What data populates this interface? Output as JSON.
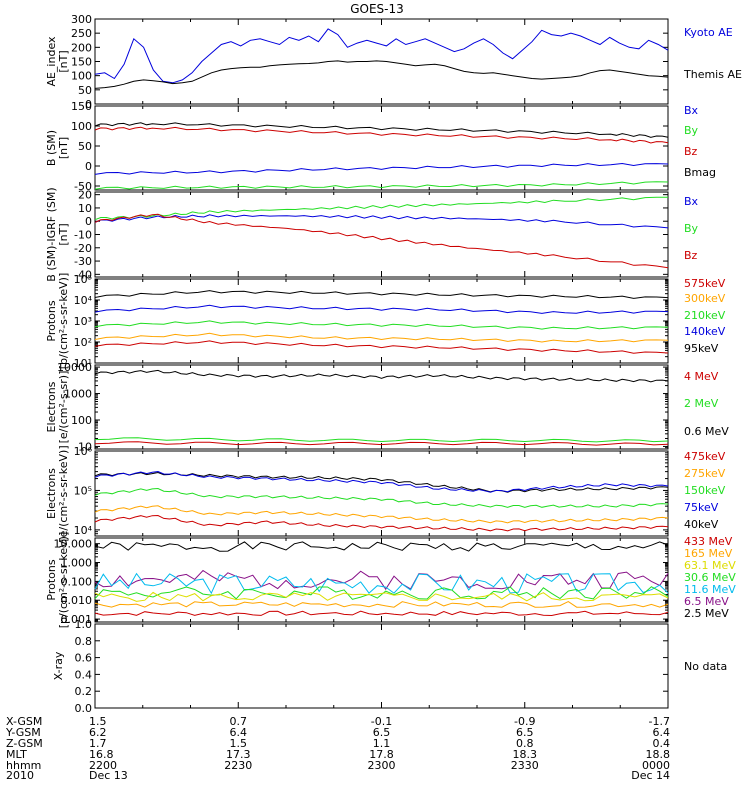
{
  "title": "GOES-13",
  "empty_panel_text": "No data",
  "colors": {
    "black": "#000000",
    "blue": "#0000dd",
    "green": "#22dd22",
    "red": "#cc0000",
    "orange": "#ffa500",
    "yellow": "#dddd00",
    "cyan": "#00bbee",
    "purple": "#881188"
  },
  "chart_data": [
    {
      "type": "line",
      "panel": "ae",
      "ylabel": [
        "AE_index",
        "[nT]"
      ],
      "ylim": [
        0,
        300
      ],
      "scale": "linear",
      "yticks": [
        0,
        50,
        100,
        150,
        200,
        250,
        300
      ],
      "ytick_labels": [
        "0",
        "50",
        "100",
        "150",
        "200",
        "250",
        "300"
      ],
      "legend": [
        {
          "label": "Kyoto AE",
          "color": "#0000dd"
        },
        {
          "label": "Themis AE",
          "color": "#000000"
        }
      ],
      "series": [
        {
          "name": "Kyoto AE",
          "color": "#0000dd",
          "values": [
            105,
            110,
            90,
            140,
            230,
            200,
            120,
            80,
            75,
            85,
            110,
            150,
            180,
            210,
            220,
            205,
            225,
            230,
            220,
            210,
            235,
            225,
            240,
            220,
            265,
            245,
            200,
            215,
            225,
            215,
            205,
            230,
            210,
            220,
            230,
            215,
            200,
            185,
            195,
            215,
            230,
            210,
            180,
            160,
            190,
            220,
            260,
            245,
            240,
            250,
            240,
            225,
            210,
            235,
            215,
            200,
            195,
            225,
            210,
            190
          ]
        },
        {
          "name": "Themis AE",
          "color": "#000000",
          "values": [
            55,
            58,
            62,
            70,
            80,
            85,
            82,
            78,
            72,
            75,
            80,
            95,
            110,
            120,
            125,
            128,
            130,
            130,
            135,
            138,
            140,
            142,
            143,
            145,
            150,
            152,
            148,
            150,
            150,
            152,
            150,
            145,
            140,
            135,
            138,
            140,
            135,
            125,
            115,
            110,
            108,
            110,
            105,
            100,
            95,
            90,
            88,
            90,
            92,
            95,
            100,
            110,
            118,
            120,
            115,
            110,
            105,
            100,
            98,
            95
          ]
        }
      ]
    },
    {
      "type": "line",
      "panel": "bsm",
      "ylabel": [
        "B (SM)",
        "[nT]"
      ],
      "ylim": [
        -60,
        150
      ],
      "scale": "linear",
      "yticks": [
        -50,
        0,
        50,
        100,
        150
      ],
      "ytick_labels": [
        "-50",
        "0",
        "50",
        "100",
        "150"
      ],
      "legend": [
        {
          "label": "Bx",
          "color": "#0000dd"
        },
        {
          "label": "By",
          "color": "#22dd22"
        },
        {
          "label": "Bz",
          "color": "#cc0000"
        },
        {
          "label": "Bmag",
          "color": "#000000"
        }
      ],
      "series": [
        {
          "name": "Bmag",
          "color": "#000000",
          "x": [
            0,
            0.1,
            0.3,
            0.5,
            0.7,
            0.9,
            1
          ],
          "values": [
            103,
            106,
            100,
            94,
            88,
            80,
            72
          ]
        },
        {
          "name": "Bz",
          "color": "#cc0000",
          "x": [
            0,
            0.1,
            0.3,
            0.5,
            0.7,
            0.9,
            1
          ],
          "values": [
            93,
            95,
            88,
            80,
            73,
            66,
            58
          ]
        },
        {
          "name": "Bx",
          "color": "#0000dd",
          "x": [
            0,
            0.2,
            0.4,
            0.6,
            0.8,
            1
          ],
          "values": [
            -18,
            -15,
            -8,
            -3,
            2,
            5
          ]
        },
        {
          "name": "By",
          "color": "#22dd22",
          "x": [
            0,
            0.2,
            0.4,
            0.6,
            0.8,
            1
          ],
          "values": [
            -55,
            -53,
            -52,
            -50,
            -47,
            -40
          ]
        }
      ]
    },
    {
      "type": "line",
      "panel": "bdiff",
      "ylabel": [
        "B (SM)-IGRF (SM)",
        "[nT]"
      ],
      "ylim": [
        -42,
        22
      ],
      "scale": "linear",
      "yticks": [
        -40,
        -30,
        -20,
        -10,
        0,
        10,
        20
      ],
      "ytick_labels": [
        "-40",
        "-30",
        "-20",
        "-10",
        "0",
        "10",
        "20"
      ],
      "legend": [
        {
          "label": "Bx",
          "color": "#0000dd"
        },
        {
          "label": "By",
          "color": "#22dd22"
        },
        {
          "label": "Bz",
          "color": "#cc0000"
        }
      ],
      "series": [
        {
          "name": "Bx",
          "color": "#0000dd",
          "x": [
            0,
            0.1,
            0.2,
            0.35,
            0.5,
            0.65,
            0.8,
            1
          ],
          "values": [
            0,
            3,
            4,
            4,
            3,
            2,
            0,
            -5
          ]
        },
        {
          "name": "By",
          "color": "#22dd22",
          "x": [
            0,
            0.1,
            0.2,
            0.35,
            0.5,
            0.65,
            0.8,
            1
          ],
          "values": [
            2,
            4,
            7,
            9,
            11,
            13,
            15,
            18
          ]
        },
        {
          "name": "Bz",
          "color": "#cc0000",
          "x": [
            0,
            0.1,
            0.2,
            0.35,
            0.5,
            0.65,
            0.8,
            1
          ],
          "values": [
            0,
            5,
            -1,
            -6,
            -13,
            -20,
            -26,
            -35
          ]
        }
      ]
    },
    {
      "type": "line",
      "panel": "protons1",
      "ylabel": [
        "Protons",
        "[p/(cm²-s-sr-keV)]"
      ],
      "ylim": [
        10,
        100000
      ],
      "scale": "log",
      "yticks": [
        10,
        100,
        1000,
        10000,
        100000
      ],
      "ytick_labels": [
        "10¹",
        "10²",
        "10³",
        "10⁴",
        "10⁵"
      ],
      "legend": [
        {
          "label": "575keV",
          "color": "#cc0000"
        },
        {
          "label": "300keV",
          "color": "#ffa500"
        },
        {
          "label": "210keV",
          "color": "#22dd22"
        },
        {
          "label": "140keV",
          "color": "#0000dd"
        },
        {
          "label": "95keV",
          "color": "#000000"
        }
      ],
      "series": [
        {
          "name": "95keV",
          "color": "#000000",
          "x": [
            0,
            0.2,
            0.4,
            0.6,
            0.8,
            1
          ],
          "values": [
            15000,
            25000,
            22000,
            18000,
            15000,
            13000
          ]
        },
        {
          "name": "140keV",
          "color": "#0000dd",
          "x": [
            0,
            0.2,
            0.4,
            0.6,
            0.8,
            1
          ],
          "values": [
            3000,
            5000,
            4000,
            3500,
            2500,
            2800
          ]
        },
        {
          "name": "210keV",
          "color": "#22dd22",
          "x": [
            0,
            0.2,
            0.4,
            0.6,
            0.8,
            1
          ],
          "values": [
            600,
            900,
            700,
            600,
            450,
            500
          ]
        },
        {
          "name": "300keV",
          "color": "#ffa500",
          "x": [
            0,
            0.2,
            0.4,
            0.6,
            0.8,
            1
          ],
          "values": [
            150,
            230,
            160,
            140,
            110,
            120
          ]
        },
        {
          "name": "575keV",
          "color": "#cc0000",
          "x": [
            0,
            0.2,
            0.4,
            0.6,
            0.8,
            1
          ],
          "values": [
            70,
            100,
            70,
            55,
            40,
            30
          ]
        }
      ]
    },
    {
      "type": "line",
      "panel": "electrons1",
      "ylabel": [
        "Electrons",
        "[e/(cm²-s-sr)]"
      ],
      "ylim": [
        8,
        12000
      ],
      "scale": "log",
      "yticks": [
        10,
        100,
        1000,
        10000
      ],
      "ytick_labels": [
        "10",
        "100",
        "1000",
        "10000"
      ],
      "legend": [
        {
          "label": "4 MeV",
          "color": "#cc0000"
        },
        {
          "label": "2 MeV",
          "color": "#22dd22"
        },
        {
          "label": "0.6 MeV",
          "color": "#000000"
        }
      ],
      "series": [
        {
          "name": "0.6 MeV",
          "color": "#000000",
          "x": [
            0,
            0.1,
            0.2,
            0.3,
            0.4,
            0.5,
            0.6,
            0.7,
            0.8,
            0.9,
            1
          ],
          "values": [
            6000,
            7000,
            5000,
            4500,
            5000,
            4200,
            4800,
            3800,
            3500,
            3200,
            3000
          ]
        },
        {
          "name": "2 MeV",
          "color": "#22dd22",
          "x": [
            0,
            0.25,
            0.5,
            0.75,
            1
          ],
          "values": [
            20,
            18,
            17,
            17,
            16
          ]
        },
        {
          "name": "4 MeV",
          "color": "#cc0000",
          "x": [
            0,
            0.25,
            0.5,
            0.75,
            1
          ],
          "values": [
            14,
            13,
            13,
            13,
            12
          ]
        }
      ]
    },
    {
      "type": "line",
      "panel": "electrons2",
      "ylabel": [
        "Electrons",
        "[e/(cm²-s-sr-keV)]"
      ],
      "ylim": [
        7000,
        1000000
      ],
      "scale": "log",
      "yticks": [
        10000,
        100000,
        1000000
      ],
      "ytick_labels": [
        "10⁴",
        "10⁵",
        "10⁶"
      ],
      "legend": [
        {
          "label": "475keV",
          "color": "#cc0000"
        },
        {
          "label": "275keV",
          "color": "#ffa500"
        },
        {
          "label": "150keV",
          "color": "#22dd22"
        },
        {
          "label": "75keV",
          "color": "#0000dd"
        },
        {
          "label": "40keV",
          "color": "#000000"
        }
      ],
      "series": [
        {
          "name": "40keV",
          "color": "#000000",
          "x": [
            0,
            0.1,
            0.2,
            0.3,
            0.4,
            0.5,
            0.6,
            0.7,
            0.8,
            0.9,
            1
          ],
          "values": [
            250000,
            270000,
            240000,
            220000,
            210000,
            190000,
            130000,
            95000,
            105000,
            110000,
            120000
          ]
        },
        {
          "name": "75keV",
          "color": "#0000dd",
          "x": [
            0,
            0.1,
            0.2,
            0.3,
            0.4,
            0.5,
            0.6,
            0.7,
            0.8,
            0.9,
            1
          ],
          "values": [
            230000,
            290000,
            220000,
            200000,
            180000,
            160000,
            110000,
            95000,
            120000,
            140000,
            130000
          ]
        },
        {
          "name": "150keV",
          "color": "#22dd22",
          "x": [
            0,
            0.1,
            0.2,
            0.3,
            0.4,
            0.5,
            0.6,
            0.7,
            0.8,
            0.9,
            1
          ],
          "values": [
            80000,
            110000,
            70000,
            70000,
            65000,
            60000,
            45000,
            40000,
            40000,
            40000,
            45000
          ]
        },
        {
          "name": "275keV",
          "color": "#ffa500",
          "x": [
            0,
            0.1,
            0.2,
            0.3,
            0.4,
            0.5,
            0.6,
            0.7,
            0.8,
            0.9,
            1
          ],
          "values": [
            30000,
            40000,
            25000,
            28000,
            25000,
            22000,
            18000,
            16000,
            17000,
            18000,
            20000
          ]
        },
        {
          "name": "475keV",
          "color": "#cc0000",
          "x": [
            0,
            0.1,
            0.2,
            0.3,
            0.4,
            0.5,
            0.6,
            0.7,
            0.8,
            0.9,
            1
          ],
          "values": [
            17000,
            23000,
            13000,
            16000,
            13000,
            12000,
            11000,
            10000,
            10500,
            11000,
            12000
          ]
        }
      ]
    },
    {
      "type": "line",
      "panel": "protons2",
      "ylabel": [
        "Protons",
        "[p/(cm²-s-sr-keV)]"
      ],
      "ylim": [
        0.0007,
        20
      ],
      "scale": "log",
      "yticks": [
        0.001,
        0.01,
        0.1,
        1,
        10
      ],
      "ytick_labels": [
        "0.001",
        "0.010",
        "0.100",
        "1.000",
        "10.000"
      ],
      "legend": [
        {
          "label": "433 MeV",
          "color": "#cc0000"
        },
        {
          "label": "165 MeV",
          "color": "#ffa500"
        },
        {
          "label": "63.1 MeV",
          "color": "#dddd00"
        },
        {
          "label": "30.6 MeV",
          "color": "#22dd22"
        },
        {
          "label": "11.6 MeV",
          "color": "#00bbee"
        },
        {
          "label": "6.5 MeV",
          "color": "#881188"
        },
        {
          "label": "2.5 MeV",
          "color": "#000000"
        }
      ],
      "series": [
        {
          "name": "2.5 MeV",
          "color": "#000000",
          "base": 7,
          "jitter": 0.25,
          "seed": 1
        },
        {
          "name": "6.5 MeV",
          "color": "#881188",
          "base": 0.12,
          "jitter": 0.5,
          "seed": 2
        },
        {
          "name": "11.6 MeV",
          "color": "#00bbee",
          "base": 0.08,
          "jitter": 0.55,
          "seed": 3
        },
        {
          "name": "30.6 MeV",
          "color": "#22dd22",
          "base": 0.025,
          "jitter": 0.35,
          "seed": 4
        },
        {
          "name": "63.1 MeV",
          "color": "#dddd00",
          "base": 0.015,
          "jitter": 0.25,
          "seed": 5
        },
        {
          "name": "165 MeV",
          "color": "#ffa500",
          "base": 0.006,
          "jitter": 0.15,
          "seed": 6
        },
        {
          "name": "433 MeV",
          "color": "#cc0000",
          "base": 0.002,
          "jitter": 0.12,
          "seed": 7
        }
      ]
    },
    {
      "type": "line",
      "panel": "xray",
      "ylabel": [
        "X-ray"
      ],
      "ylim": [
        0,
        1
      ],
      "scale": "linear",
      "yticks": [
        0,
        0.2,
        0.4,
        0.6,
        0.8,
        1.0
      ],
      "ytick_labels": [
        "0.0",
        "0.2",
        "0.4",
        "0.6",
        "0.8",
        "1.0"
      ],
      "legend": [],
      "series": []
    }
  ],
  "orbit_table": {
    "row_labels": [
      "X-GSM",
      "Y-GSM",
      "Z-GSM",
      "MLT",
      "hhmm",
      "2010"
    ],
    "columns": [
      [
        "1.5",
        "6.2",
        "1.7",
        "16.8",
        "2200",
        "Dec 13"
      ],
      [
        "0.7",
        "6.4",
        "1.5",
        "17.3",
        "2230",
        ""
      ],
      [
        "-0.1",
        "6.5",
        "1.1",
        "17.8",
        "2300",
        ""
      ],
      [
        "-0.9",
        "6.5",
        "0.8",
        "18.3",
        "2330",
        ""
      ],
      [
        "-1.7",
        "6.4",
        "0.4",
        "18.8",
        "0000",
        "Dec 14"
      ]
    ]
  }
}
